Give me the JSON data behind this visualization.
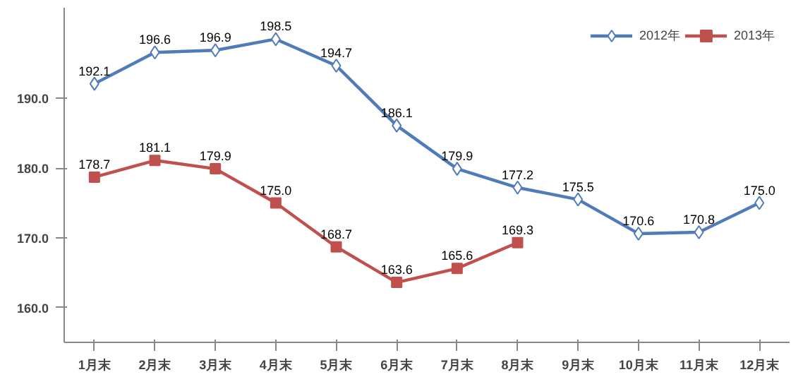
{
  "chart_data": {
    "type": "line",
    "categories": [
      "1月末",
      "2月末",
      "3月末",
      "4月末",
      "5月末",
      "6月末",
      "7月末",
      "8月末",
      "9月末",
      "10月末",
      "11月末",
      "12月末"
    ],
    "series": [
      {
        "name": "2012年",
        "color": "#4f7cb8",
        "marker": "diamond",
        "values": [
          192.1,
          196.6,
          196.9,
          198.5,
          194.7,
          186.1,
          179.9,
          177.2,
          175.5,
          170.6,
          170.8,
          175.0
        ],
        "value_labels": [
          "192.1",
          "196.6",
          "196.9",
          "198.5",
          "194.7",
          "186.1",
          "179.9",
          "177.2",
          "175.5",
          "170.6",
          "170.8",
          "175.0"
        ]
      },
      {
        "name": "2013年",
        "color": "#c0504d",
        "marker": "square",
        "values": [
          178.7,
          181.1,
          179.9,
          175.0,
          168.7,
          163.6,
          165.6,
          169.3,
          null,
          null,
          null,
          null
        ],
        "value_labels": [
          "178.7",
          "181.1",
          "179.9",
          "175.0",
          "168.7",
          "163.6",
          "165.6",
          "169.3",
          null,
          null,
          null,
          null
        ]
      }
    ],
    "ylim": [
      155,
      203
    ],
    "yticks": [
      {
        "value": 160,
        "label": "160.0"
      },
      {
        "value": 170,
        "label": "170.0"
      },
      {
        "value": 180,
        "label": "180.0"
      },
      {
        "value": 190,
        "label": "190.0"
      }
    ],
    "grid": false,
    "legend": "top right",
    "line_style": "solid"
  }
}
